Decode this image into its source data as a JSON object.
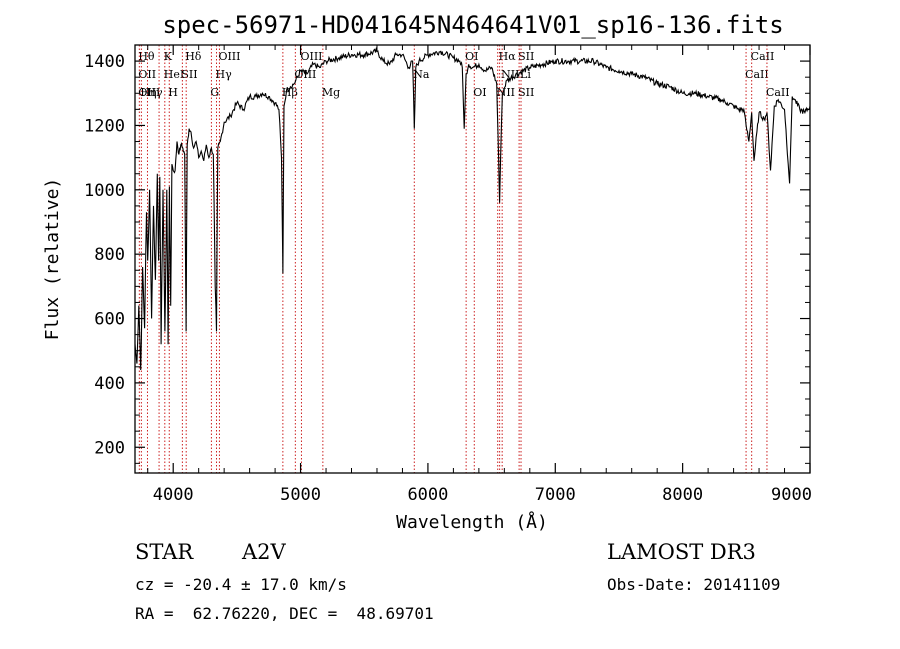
{
  "chart_data": {
    "type": "line",
    "title": "spec-56971-HD041645N464641V01_sp16-136.fits",
    "xlabel": "Wavelength (Å)",
    "ylabel": "Flux (relative)",
    "xlim": [
      3700,
      9000
    ],
    "ylim": [
      120,
      1450
    ],
    "xticks": [
      4000,
      5000,
      6000,
      7000,
      8000,
      9000
    ],
    "yticks": [
      200,
      400,
      600,
      800,
      1000,
      1200,
      1400
    ],
    "series": [
      {
        "name": "spectrum",
        "x": [
          3700,
          3715,
          3730,
          3745,
          3760,
          3775,
          3790,
          3800,
          3815,
          3830,
          3845,
          3860,
          3875,
          3885,
          3895,
          3905,
          3920,
          3935,
          3950,
          3960,
          3970,
          3980,
          3990,
          4000,
          4015,
          4030,
          4045,
          4060,
          4075,
          4090,
          4101,
          4110,
          4125,
          4140,
          4160,
          4180,
          4200,
          4220,
          4240,
          4260,
          4280,
          4300,
          4315,
          4330,
          4340,
          4350,
          4370,
          4400,
          4450,
          4500,
          4550,
          4600,
          4650,
          4700,
          4750,
          4800,
          4830,
          4850,
          4861,
          4870,
          4890,
          4920,
          4950,
          5000,
          5050,
          5100,
          5150,
          5200,
          5300,
          5400,
          5500,
          5600,
          5650,
          5700,
          5750,
          5800,
          5850,
          5880,
          5893,
          5905,
          5930,
          6000,
          6100,
          6200,
          6250,
          6270,
          6285,
          6300,
          6320,
          6350,
          6400,
          6450,
          6500,
          6540,
          6555,
          6563,
          6571,
          6585,
          6620,
          6700,
          6800,
          6900,
          7000,
          7100,
          7200,
          7300,
          7400,
          7500,
          7600,
          7700,
          7800,
          7900,
          8000,
          8100,
          8200,
          8300,
          8350,
          8400,
          8440,
          8480,
          8498,
          8520,
          8542,
          8560,
          8600,
          8640,
          8662,
          8690,
          8720,
          8750,
          8800,
          8840,
          8860,
          8880,
          8920,
          8960,
          9000
        ],
        "values": [
          520,
          460,
          640,
          440,
          760,
          570,
          930,
          780,
          1000,
          600,
          950,
          720,
          1050,
          780,
          1040,
          520,
          1000,
          560,
          1000,
          520,
          1010,
          640,
          1080,
          1060,
          1060,
          1150,
          1110,
          1140,
          1130,
          1110,
          560,
          1140,
          1190,
          1180,
          1130,
          1150,
          1100,
          1120,
          1090,
          1140,
          1100,
          1130,
          1110,
          700,
          560,
          1130,
          1150,
          1210,
          1230,
          1270,
          1250,
          1290,
          1290,
          1300,
          1290,
          1270,
          1250,
          1100,
          740,
          1260,
          1310,
          1320,
          1330,
          1370,
          1360,
          1390,
          1380,
          1400,
          1410,
          1420,
          1420,
          1430,
          1400,
          1390,
          1420,
          1420,
          1380,
          1400,
          1190,
          1380,
          1400,
          1420,
          1430,
          1410,
          1400,
          1380,
          1190,
          1360,
          1390,
          1380,
          1390,
          1370,
          1380,
          1330,
          1100,
          960,
          1100,
          1300,
          1340,
          1360,
          1380,
          1390,
          1400,
          1400,
          1400,
          1400,
          1380,
          1370,
          1360,
          1350,
          1330,
          1320,
          1300,
          1300,
          1290,
          1280,
          1270,
          1260,
          1250,
          1250,
          1200,
          1150,
          1240,
          1090,
          1240,
          1220,
          1240,
          1060,
          1260,
          1280,
          1250,
          1020,
          1290,
          1280,
          1250,
          1240,
          1260
        ]
      }
    ],
    "line_markers": [
      {
        "x": 3734,
        "top": "Hθ",
        "mid": "OII",
        "low": "OIII"
      },
      {
        "x": 3750,
        "top": "",
        "mid": "",
        "low": "Hη"
      },
      {
        "x": 3798,
        "top": "",
        "mid": "",
        "low": "Hγ"
      },
      {
        "x": 3889,
        "top": "",
        "mid": "",
        "low": ""
      },
      {
        "x": 3934,
        "top": "K",
        "mid": "HeI",
        "low": ""
      },
      {
        "x": 3969,
        "top": "",
        "mid": "",
        "low": "H"
      },
      {
        "x": 4072,
        "top": "",
        "mid": "SII",
        "low": ""
      },
      {
        "x": 4102,
        "top": "Hδ",
        "mid": "",
        "low": ""
      },
      {
        "x": 4300,
        "top": "",
        "mid": "",
        "low": "G"
      },
      {
        "x": 4340,
        "top": "",
        "mid": "Hγ",
        "low": ""
      },
      {
        "x": 4363,
        "top": "OIII",
        "mid": "",
        "low": ""
      },
      {
        "x": 4861,
        "top": "",
        "mid": "",
        "low": "Hβ"
      },
      {
        "x": 4959,
        "top": "",
        "mid": "OIII",
        "low": ""
      },
      {
        "x": 5007,
        "top": "OIII",
        "mid": "",
        "low": ""
      },
      {
        "x": 5175,
        "top": "",
        "mid": "",
        "low": "Mg"
      },
      {
        "x": 5893,
        "top": "",
        "mid": "Na",
        "low": ""
      },
      {
        "x": 6300,
        "top": "OI",
        "mid": "",
        "low": ""
      },
      {
        "x": 6364,
        "top": "",
        "mid": "",
        "low": "OI"
      },
      {
        "x": 6548,
        "top": "",
        "mid": "",
        "low": "NII"
      },
      {
        "x": 6563,
        "top": "Hα",
        "mid": "",
        "low": ""
      },
      {
        "x": 6583,
        "top": "",
        "mid": "NII",
        "low": ""
      },
      {
        "x": 6716,
        "top": "SII",
        "mid": "",
        "low": "SII"
      },
      {
        "x": 6731,
        "top": "",
        "mid": "Li",
        "low": ""
      },
      {
        "x": 8498,
        "top": "",
        "mid": "CaII",
        "low": ""
      },
      {
        "x": 8542,
        "top": "CaII",
        "mid": "",
        "low": ""
      },
      {
        "x": 8662,
        "top": "",
        "mid": "",
        "low": "CaII"
      }
    ],
    "line_color": "#000000",
    "marker_color": "#cc2222"
  },
  "info": {
    "object_class": "STAR",
    "subclass": "A2V",
    "survey": "LAMOST DR3",
    "cz": "cz = -20.4 ± 17.0 km/s",
    "obs_date": "Obs-Date: 20141109",
    "coords": "RA =  62.76220, DEC =  48.69701"
  }
}
